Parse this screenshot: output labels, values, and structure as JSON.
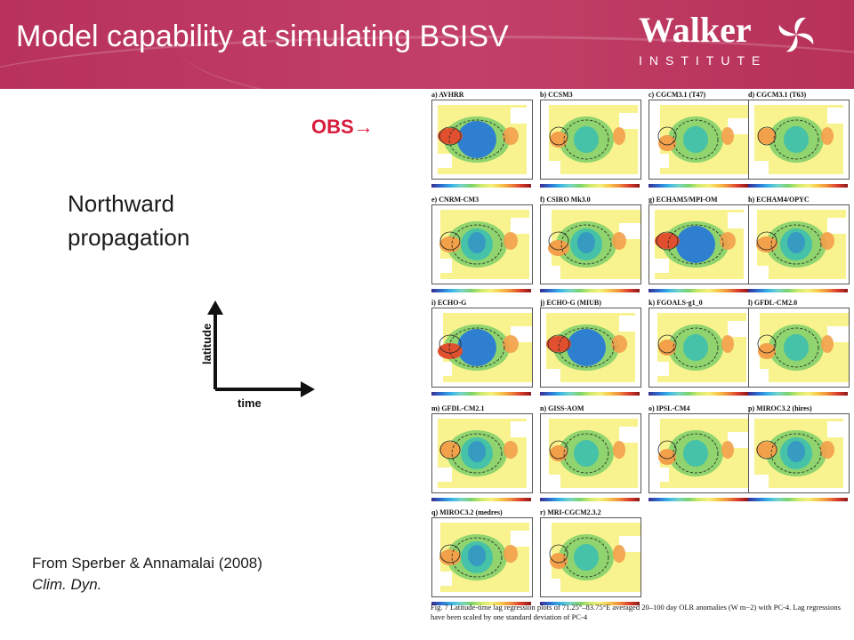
{
  "header": {
    "title": "Model capability at simulating BSISV",
    "logo_word": "Walker",
    "logo_sub": "INSTITUTE"
  },
  "obs_label": "OBS",
  "subtitle": [
    "Northward",
    "propagation"
  ],
  "axes": {
    "y_label": "latitude",
    "x_label": "time"
  },
  "citation": {
    "line1": "From Sperber & Annamalai (2008)",
    "line2": "Clim. Dyn."
  },
  "figure": {
    "panels": [
      {
        "title": "a) AVHRR",
        "intensity": 3
      },
      {
        "title": "b) CCSM3",
        "intensity": 1
      },
      {
        "title": "c) CGCM3.1 (T47)",
        "intensity": 1
      },
      {
        "title": "d) CGCM3.1 (T63)",
        "intensity": 1
      },
      {
        "title": "e) CNRM-CM3",
        "intensity": 2
      },
      {
        "title": "f) CSIRO Mk3.0",
        "intensity": 2
      },
      {
        "title": "g) ECHAM5/MPI-OM",
        "intensity": 3
      },
      {
        "title": "h) ECHAM4/OPYC",
        "intensity": 2
      },
      {
        "title": "i) ECHO-G",
        "intensity": 3
      },
      {
        "title": "j) ECHO-G (MIUB)",
        "intensity": 3
      },
      {
        "title": "k) FGOALS-g1_0",
        "intensity": 1
      },
      {
        "title": "l) GFDL-CM2.0",
        "intensity": 1
      },
      {
        "title": "m) GFDL-CM2.1",
        "intensity": 2
      },
      {
        "title": "n) GISS-AOM",
        "intensity": 1
      },
      {
        "title": "o) IPSL-CM4",
        "intensity": 1
      },
      {
        "title": "p) MIROC3.2 (hires)",
        "intensity": 2
      },
      {
        "title": "q) MIROC3.2 (medres)",
        "intensity": 2
      },
      {
        "title": "r) MRI-CGCM2.3.2",
        "intensity": 1
      }
    ],
    "caption": "Fig. 7 Latitude-time lag regression plots of 71.25°–83.75°E averaged 20–100 day OLR anomalies (W m−2) with PC-4. Lag regressions have been scaled by one standard deviation of PC-4"
  }
}
